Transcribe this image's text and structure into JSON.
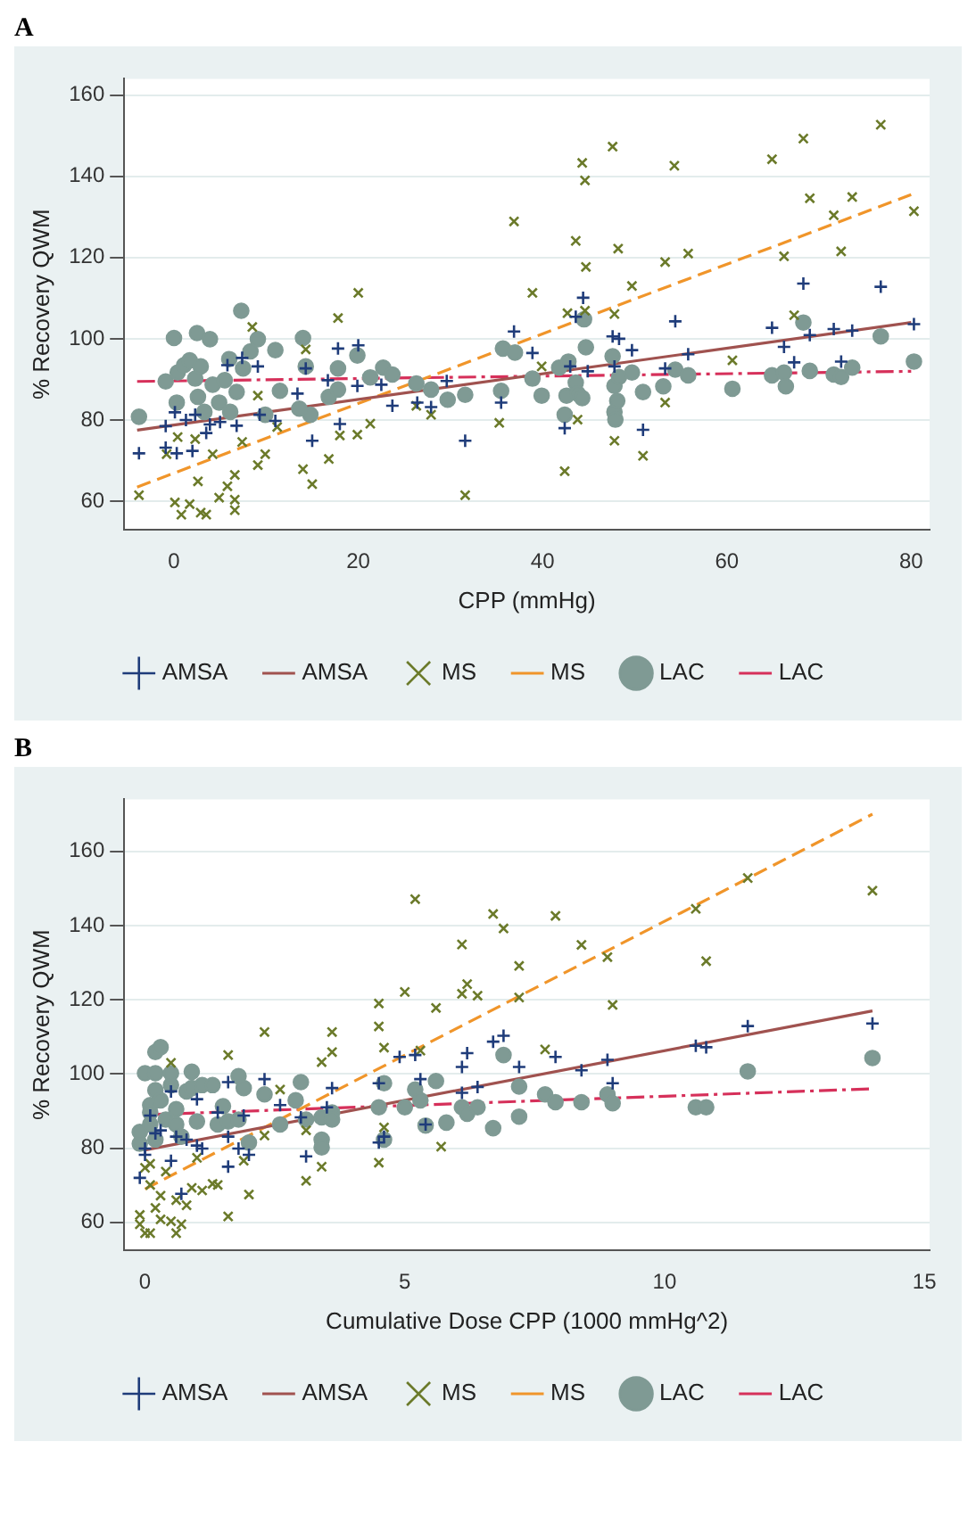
{
  "chart_data": [
    {
      "type": "scatter",
      "title": "A",
      "xlabel": "CPP (mmHg)",
      "ylabel": "% Recovery QWM",
      "xlim": [
        -5.4,
        82
      ],
      "ylim": [
        53,
        164
      ],
      "xticks": [
        0,
        20,
        40,
        60,
        80
      ],
      "yticks": [
        60,
        80,
        100,
        120,
        140,
        160
      ],
      "grid": "y",
      "legend": "bottom",
      "series": [
        {
          "name": "AMSA",
          "color": "#1f3c7a",
          "marker": "plus",
          "x": [
            -3.8,
            -0.9,
            0.1,
            -0.9,
            0.3,
            1.3,
            2.3,
            2,
            3.5,
            3.9,
            5,
            5.8,
            6.8,
            7.4,
            9.1,
            9.3,
            11,
            13.4,
            14.3,
            15,
            16.7,
            17.8,
            18,
            20,
            19.9,
            22.5,
            23.7,
            26.4,
            27.9,
            29.6,
            31.6,
            35.5,
            36.9,
            38.9,
            42.4,
            43,
            43.6,
            44.4,
            44.9,
            47.6,
            47.8,
            48.3,
            49.7,
            50.9,
            53.3,
            54.4,
            55.8,
            64.9,
            66.2,
            67.3,
            68.3,
            69,
            71.6,
            72.4,
            73.6,
            76.7,
            80.3
          ],
          "values": [
            71.8,
            78.5,
            81.9,
            73.2,
            71.8,
            80,
            81.3,
            72.4,
            76.8,
            78.9,
            79.5,
            93.5,
            78.6,
            95.3,
            93.2,
            81.3,
            79.8,
            86.5,
            92.7,
            74.9,
            89.8,
            97.6,
            79,
            98.4,
            88.4,
            88.7,
            83.5,
            84.3,
            83.2,
            89.6,
            74.9,
            84.3,
            101.8,
            96.5,
            78,
            93.2,
            105.4,
            110.1,
            92,
            100.6,
            93.2,
            100,
            97.2,
            77.6,
            92.7,
            104.3,
            96.2,
            102.7,
            98,
            94.2,
            113.6,
            100.9,
            102.4,
            94.4,
            102,
            112.8,
            103.6
          ]
        },
        {
          "name": "MS",
          "color": "#6b7a2a",
          "marker": "cross",
          "x": [
            -3.8,
            -0.8,
            0.1,
            0.8,
            1.7,
            0.4,
            2.3,
            2.6,
            2.9,
            3.5,
            4.2,
            4.9,
            5.8,
            6.6,
            6.6,
            6.6,
            7.4,
            8.5,
            9.1,
            9.1,
            9.9,
            11.2,
            14.3,
            14,
            15,
            16.8,
            17.8,
            18,
            20,
            19.9,
            21.3,
            26.3,
            27.9,
            31.6,
            35.3,
            36.9,
            38.9,
            39.9,
            42.4,
            43.6,
            42.7,
            44.3,
            44.6,
            44.7,
            44.6,
            43.8,
            47.6,
            47.8,
            47.8,
            48.2,
            49.7,
            50.9,
            53.3,
            53.3,
            54.3,
            55.8,
            60.6,
            64.9,
            66.2,
            67.3,
            68.3,
            69,
            71.6,
            72.4,
            73.6,
            76.7,
            80.3
          ],
          "values": [
            61.5,
            71.6,
            59.7,
            56.7,
            59.3,
            75.8,
            75.3,
            64.9,
            57.2,
            56.7,
            71.6,
            60.9,
            63.7,
            66.5,
            57.8,
            60.4,
            74.6,
            102.9,
            68.9,
            86,
            71.6,
            78.3,
            97.4,
            67.9,
            64.2,
            70.4,
            105.1,
            76.2,
            111.3,
            76.4,
            79.1,
            83.5,
            81.3,
            61.5,
            79.3,
            128.9,
            111.3,
            93.2,
            67.4,
            124.1,
            106.3,
            143.3,
            139,
            117.7,
            106.9,
            80.1,
            147.3,
            106.1,
            74.9,
            122.2,
            113,
            71.2,
            118.9,
            84.3,
            142.6,
            121,
            94.7,
            144.2,
            120.3,
            105.8,
            149.3,
            134.6,
            130.4,
            121.5,
            134.9,
            152.7,
            131.4
          ]
        },
        {
          "name": "LAC",
          "color": "#7f9a94",
          "marker": "circle",
          "x": [
            -3.8,
            -0.9,
            0,
            0.4,
            0.3,
            1.1,
            1.7,
            2.5,
            2.3,
            2.6,
            2.9,
            3.3,
            3.9,
            4.2,
            4.9,
            5.5,
            6,
            6.1,
            6.8,
            7.3,
            7.5,
            8.3,
            9.1,
            9.9,
            11,
            11.5,
            14,
            14.3,
            14.8,
            13.6,
            16.8,
            17.8,
            17.8,
            19.9,
            21.3,
            22.7,
            23.7,
            26.3,
            27.9,
            29.7,
            31.6,
            35.5,
            35.7,
            37,
            38.9,
            39.9,
            41.8,
            42.4,
            42.6,
            42.8,
            43.6,
            43.8,
            44.3,
            44.5,
            44.7,
            47.6,
            47.8,
            47.8,
            47.9,
            48.1,
            48.3,
            49.7,
            50.9,
            53.1,
            54.4,
            55.8,
            60.6,
            64.9,
            66.2,
            66.4,
            68.3,
            69,
            71.6,
            72.4,
            73.6,
            76.7,
            80.3
          ],
          "values": [
            80.8,
            89.5,
            100.2,
            91.7,
            84.3,
            93.5,
            94.7,
            101.4,
            90.2,
            85.7,
            93.2,
            82,
            99.9,
            88.7,
            84.3,
            89.8,
            95,
            82,
            86.9,
            106.9,
            92.7,
            96.9,
            99.9,
            81.3,
            97.2,
            87.2,
            100.2,
            93.2,
            81.3,
            82.8,
            85.7,
            92.7,
            87.5,
            95.9,
            90.5,
            92.9,
            91.2,
            89,
            87.5,
            85,
            86.2,
            87.2,
            97.6,
            96.6,
            90.2,
            86,
            92.9,
            81.3,
            86,
            94.4,
            89.2,
            86.5,
            85.4,
            104.8,
            97.9,
            95.7,
            88.4,
            82,
            80.1,
            84.7,
            90.6,
            91.7,
            86.9,
            88.3,
            92.4,
            91,
            87.7,
            91,
            91.7,
            88.3,
            104,
            92.1,
            91.2,
            90.6,
            92.9,
            100.6,
            94.4
          ]
        },
        {
          "type": "line",
          "name": "AMSA",
          "color": "#a0524f",
          "line_style": "solid",
          "x": [
            -4,
            80
          ],
          "values": [
            77.5,
            104
          ]
        },
        {
          "type": "line",
          "name": "MS",
          "color": "#f0952a",
          "line_style": "dashed",
          "x": [
            -4,
            80
          ],
          "values": [
            63.5,
            135.5
          ]
        },
        {
          "type": "line",
          "name": "LAC",
          "color": "#d6305a",
          "line_style": "dashdot",
          "x": [
            -4,
            80
          ],
          "values": [
            89.5,
            92
          ]
        }
      ]
    },
    {
      "type": "scatter",
      "title": "B",
      "xlabel": "Cumulative Dose CPP (1000 mmHg^2)",
      "ylabel": "% Recovery QWM",
      "xlim": [
        -0.4,
        15.1
      ],
      "ylim": [
        52.5,
        174
      ],
      "xticks": [
        0,
        5,
        10,
        15
      ],
      "yticks": [
        60,
        80,
        100,
        120,
        140,
        160
      ],
      "grid": "y",
      "legend": "bottom",
      "series": [
        {
          "name": "AMSA",
          "color": "#1f3c7a",
          "marker": "plus",
          "x": [
            -0.1,
            0,
            0,
            0.1,
            0.2,
            0.3,
            0.5,
            0.5,
            0.6,
            0.7,
            0.8,
            1,
            1,
            1.1,
            1.4,
            1.6,
            1.6,
            1.6,
            1.8,
            1.9,
            2,
            2.3,
            2.6,
            3,
            3.1,
            3.6,
            3.5,
            4.5,
            4.5,
            4.6,
            4.9,
            5.2,
            5.3,
            5.4,
            6.1,
            6.1,
            6.2,
            6.4,
            6.7,
            6.9,
            7.2,
            7.9,
            8.4,
            8.9,
            9,
            10.6,
            10.8,
            11.6,
            14
          ],
          "values": [
            72,
            78.2,
            79.9,
            88.8,
            84,
            84.8,
            95.3,
            76.6,
            83.1,
            67.7,
            82.3,
            93.2,
            80.7,
            79.9,
            89.6,
            83.1,
            97.8,
            75,
            79.9,
            88.8,
            78.2,
            98.6,
            91.6,
            88.3,
            77.8,
            96.2,
            91,
            97.5,
            81.5,
            83.1,
            104.6,
            105.1,
            98.6,
            86.4,
            94.9,
            101.9,
            105.6,
            96.5,
            108.7,
            110.3,
            101.9,
            104.6,
            101,
            103.8,
            97.5,
            107.6,
            107.2,
            112.9,
            113.6
          ]
        },
        {
          "name": "MS",
          "color": "#6b7a2a",
          "marker": "cross",
          "x": [
            -0.1,
            -0.1,
            0,
            0.1,
            0.1,
            0,
            0.1,
            0.2,
            0.3,
            0.4,
            0.3,
            0.5,
            0.5,
            0.6,
            0.6,
            0.7,
            0.8,
            0.9,
            1,
            1.1,
            1.3,
            1.4,
            1.6,
            1.6,
            1.9,
            2,
            2.3,
            2.3,
            2.6,
            3.1,
            3.1,
            3.4,
            3.4,
            3.6,
            3.6,
            4.5,
            4.5,
            4.5,
            4.6,
            4.6,
            5,
            5.2,
            5.3,
            5.6,
            5.7,
            6.1,
            6.1,
            6.2,
            6.4,
            6.7,
            6.9,
            7.2,
            7.2,
            7.7,
            7.9,
            8.4,
            8.9,
            9,
            10.6,
            10.8,
            11.6,
            14
          ],
          "values": [
            62,
            59.5,
            57.1,
            57.1,
            70.1,
            74.7,
            75.8,
            63.9,
            60.8,
            73.7,
            67.2,
            103,
            60.3,
            66,
            57.1,
            59.5,
            64.6,
            69.3,
            77.4,
            68.6,
            70.4,
            70.1,
            105.1,
            61.6,
            76.6,
            67.5,
            111.3,
            83.4,
            95.8,
            71.2,
            84.8,
            103.2,
            75,
            111.3,
            105.9,
            119,
            112.8,
            76.1,
            107.1,
            85.6,
            122.1,
            147.1,
            106.3,
            117.8,
            80.4,
            121.6,
            134.9,
            124.2,
            121.1,
            143.1,
            139.2,
            120.6,
            129.1,
            106.6,
            142.6,
            134.8,
            131.5,
            118.6,
            144.5,
            130.4,
            152.8,
            149.4
          ]
        },
        {
          "name": "LAC",
          "color": "#7f9a94",
          "marker": "circle",
          "x": [
            -0.1,
            -0.1,
            0,
            0.1,
            0.1,
            0.1,
            0.2,
            0.2,
            0.2,
            0.2,
            0.3,
            0.3,
            0.4,
            0.5,
            0.5,
            0.6,
            0.6,
            0.7,
            0.8,
            0.9,
            0.9,
            1,
            1.1,
            1.3,
            1.4,
            1.5,
            1.6,
            1.8,
            1.8,
            1.9,
            2,
            2.3,
            2.6,
            3,
            2.9,
            3.1,
            3.4,
            3.4,
            3.4,
            3.6,
            3.6,
            4.5,
            4.6,
            4.6,
            5,
            5.2,
            5.3,
            5.4,
            5.6,
            5.8,
            6.1,
            6.2,
            6.4,
            6.7,
            6.9,
            7.2,
            7.2,
            7.7,
            7.9,
            8.4,
            8.9,
            9,
            10.6,
            10.8,
            11.6,
            14
          ],
          "values": [
            81.2,
            84.4,
            100.2,
            91.6,
            89.6,
            86.4,
            100.2,
            105.9,
            95.6,
            82.3,
            107.2,
            92.9,
            87.7,
            97,
            100.2,
            90.5,
            86.4,
            83.1,
            95.3,
            100.6,
            96.2,
            87.2,
            97,
            97,
            86.4,
            91.3,
            87.2,
            99.4,
            87.7,
            96.2,
            81.5,
            94.5,
            86.4,
            97.8,
            92.9,
            87.7,
            82.3,
            80.2,
            88.3,
            89.6,
            87.7,
            91,
            97.5,
            82.3,
            91,
            95.8,
            92.9,
            86.1,
            98.1,
            86.9,
            91,
            89.3,
            91,
            85.4,
            105.1,
            88.5,
            96.6,
            94.5,
            92.4,
            92.4,
            94.5,
            92.1,
            91,
            91,
            100.7,
            104.3
          ]
        },
        {
          "type": "line",
          "name": "AMSA",
          "color": "#a0524f",
          "line_style": "solid",
          "x": [
            0,
            14
          ],
          "values": [
            79.5,
            117
          ]
        },
        {
          "type": "line",
          "name": "MS",
          "color": "#f0952a",
          "line_style": "dashed",
          "x": [
            0,
            14
          ],
          "values": [
            69,
            170
          ]
        },
        {
          "type": "line",
          "name": "LAC",
          "color": "#d6305a",
          "line_style": "dashdot",
          "x": [
            0,
            14
          ],
          "values": [
            89,
            96
          ]
        }
      ]
    }
  ]
}
